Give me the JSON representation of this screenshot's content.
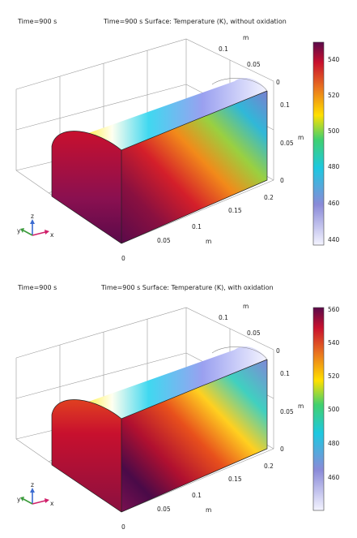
{
  "plots": [
    {
      "time_label": "Time=900 s",
      "title": "Time=900 s Surface: Temperature (K), without oxidation",
      "axes": {
        "y_unit": "m",
        "y_ticks": [
          "0.1",
          "0.05",
          "0"
        ],
        "z_unit": "m",
        "z_ticks": [
          "0.1",
          "0.05",
          "0"
        ],
        "x_unit": "m",
        "x_ticks": [
          "0.2",
          "0.15",
          "0.1",
          "0.05",
          "0"
        ]
      },
      "colorbar": {
        "min": 436,
        "max": 548,
        "ticks": [
          "540",
          "520",
          "500",
          "480",
          "460",
          "440"
        ]
      }
    },
    {
      "time_label": "Time=900 s",
      "title": "Time=900 s Surface: Temperature (K), with oxidation",
      "axes": {
        "y_unit": "m",
        "y_ticks": [
          "0.1",
          "0.05",
          "0"
        ],
        "z_unit": "m",
        "z_ticks": [
          "0.1",
          "0.05",
          "0"
        ],
        "x_unit": "m",
        "x_ticks": [
          "0.2",
          "0.15",
          "0.1",
          "0.05",
          "0"
        ]
      },
      "colorbar": {
        "min": 442,
        "max": 562,
        "ticks": [
          "560",
          "540",
          "520",
          "500",
          "480",
          "460"
        ]
      }
    }
  ],
  "triad": {
    "x": "x",
    "y": "y",
    "z": "z"
  },
  "colors": {
    "hot": "#5a0a4a",
    "red": "#c8102e",
    "yellow": "#ffe000",
    "cyan": "#1ec8e0",
    "cold": "#f4f4ff"
  }
}
